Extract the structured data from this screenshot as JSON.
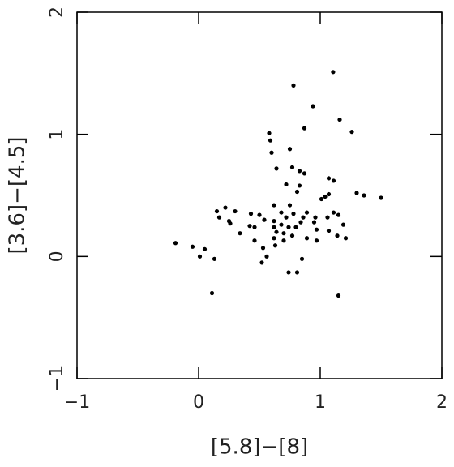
{
  "chart_data": {
    "type": "scatter",
    "x_label": "[5.8]−[8]",
    "y_label": "[3.6]−[4.5]",
    "xlim": [
      -1,
      2
    ],
    "ylim": [
      -1,
      2
    ],
    "xticks": [
      {
        "value": -1,
        "label": "−1"
      },
      0,
      1,
      2
    ],
    "yticks": [
      {
        "value": -1,
        "label": "−1"
      },
      0,
      1,
      2
    ],
    "color": "#000000",
    "x": [
      1.106,
      0.78,
      0.94,
      1.16,
      0.87,
      1.26,
      0.58,
      0.59,
      0.6,
      0.75,
      0.64,
      0.77,
      0.83,
      0.87,
      1.07,
      1.11,
      0.72,
      0.83,
      0.81,
      1.3,
      1.36,
      1.5,
      1.04,
      1.01,
      1.07,
      0.62,
      0.75,
      0.22,
      0.15,
      0.3,
      0.43,
      0.5,
      0.68,
      0.78,
      0.89,
      1.11,
      1.15,
      0.17,
      0.25,
      0.26,
      0.54,
      0.72,
      0.86,
      0.96,
      1.06,
      0.62,
      0.68,
      0.84,
      0.95,
      1.19,
      0.42,
      0.46,
      0.62,
      0.74,
      0.8,
      0.97,
      1.07,
      0.34,
      0.64,
      0.7,
      0.77,
      1.14,
      0.62,
      0.89,
      0.97,
      1.21,
      0.46,
      -0.19,
      0.7,
      0.63,
      -0.05,
      0.05,
      0.53,
      0.01,
      0.56,
      0.13,
      0.85,
      0.52,
      0.74,
      0.81,
      0.11,
      1.15
    ],
    "y": [
      1.51,
      1.4,
      1.23,
      1.12,
      1.05,
      1.02,
      1.01,
      0.95,
      0.85,
      0.88,
      0.72,
      0.73,
      0.7,
      0.68,
      0.64,
      0.62,
      0.59,
      0.58,
      0.53,
      0.52,
      0.5,
      0.48,
      0.49,
      0.47,
      0.51,
      0.42,
      0.42,
      0.4,
      0.37,
      0.37,
      0.35,
      0.34,
      0.36,
      0.35,
      0.36,
      0.36,
      0.34,
      0.32,
      0.29,
      0.27,
      0.3,
      0.32,
      0.32,
      0.32,
      0.32,
      0.29,
      0.26,
      0.28,
      0.28,
      0.26,
      0.25,
      0.24,
      0.24,
      0.24,
      0.24,
      0.22,
      0.21,
      0.19,
      0.2,
      0.19,
      0.17,
      0.17,
      0.15,
      0.15,
      0.13,
      0.15,
      0.13,
      0.11,
      0.13,
      0.09,
      0.08,
      0.06,
      0.07,
      0.0,
      0.0,
      -0.02,
      -0.02,
      -0.05,
      -0.13,
      -0.13,
      -0.3,
      -0.32
    ]
  }
}
